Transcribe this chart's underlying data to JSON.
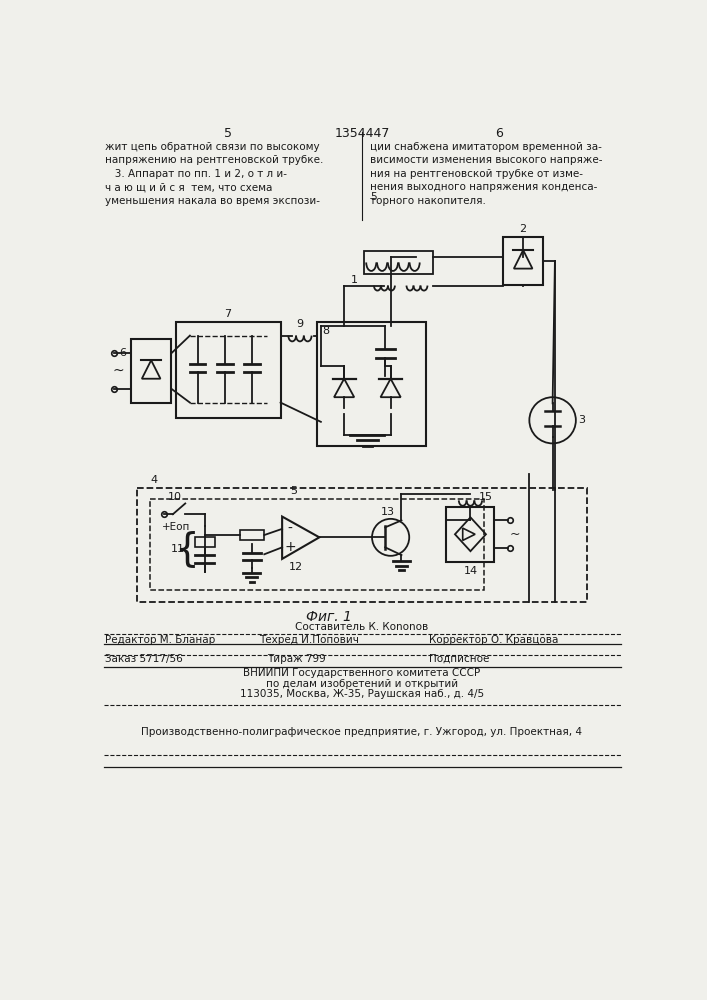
{
  "bg_color": "#f0f0eb",
  "line_color": "#1a1a1a",
  "text_color": "#1a1a1a",
  "page_number_left": "5",
  "page_number_center": "1354447",
  "page_number_right": "6"
}
